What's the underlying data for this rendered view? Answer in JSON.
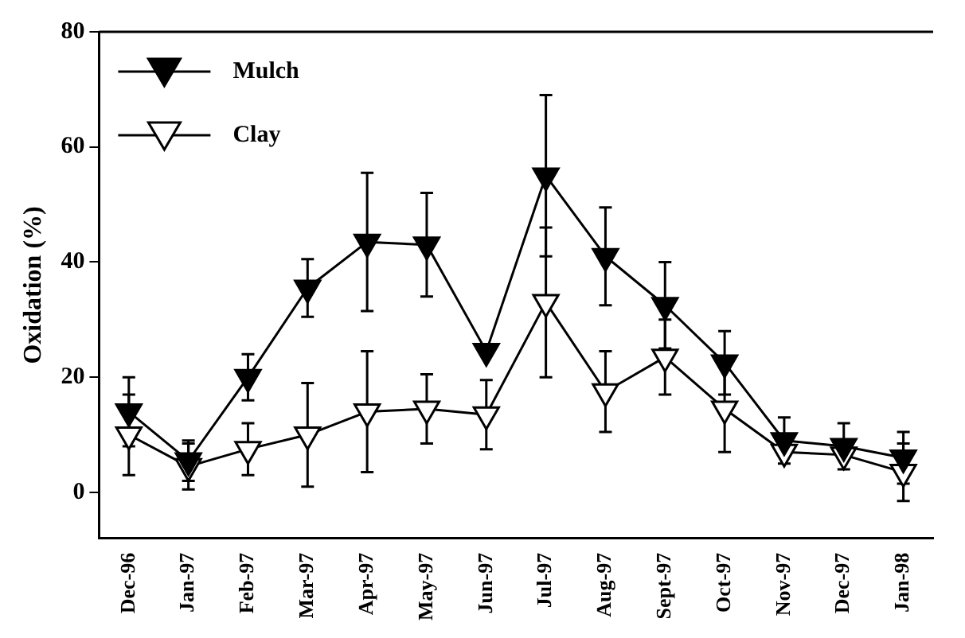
{
  "chart_data": {
    "type": "line",
    "ylabel": "Oxidation (%)",
    "categories": [
      "Dec-96",
      "Jan-97",
      "Feb-97",
      "Mar-97",
      "Apr-97",
      "May-97",
      "Jun-97",
      "Jul-97",
      "Aug-97",
      "Sept-97",
      "Oct-97",
      "Nov-97",
      "Dec-97",
      "Jan-98"
    ],
    "series": [
      {
        "name": "Mulch",
        "color": "#000000",
        "values": [
          14,
          5.5,
          20,
          35.5,
          43.5,
          43,
          24.5,
          55,
          41,
          32.5,
          22.5,
          9,
          8,
          6
        ],
        "errors": [
          6,
          3.5,
          4,
          5,
          12,
          9,
          null,
          14,
          8.5,
          7.5,
          5.5,
          4,
          4,
          4.5
        ]
      },
      {
        "name": "Clay",
        "color": "#ffffff",
        "values": [
          10,
          4.5,
          7.5,
          10,
          14,
          14.5,
          13.5,
          33,
          17.5,
          23.5,
          14.5,
          7,
          6.5,
          3.5
        ],
        "errors": [
          7,
          4,
          4.5,
          9,
          10.5,
          6,
          6,
          13,
          7,
          6.5,
          7.5,
          null,
          null,
          5
        ]
      }
    ],
    "ylim": [
      -8,
      80
    ],
    "yticks": [
      0,
      20,
      40,
      60,
      80
    ],
    "grid": false,
    "legend": "top left",
    "marker": "triangle",
    "line_style": "solid"
  }
}
